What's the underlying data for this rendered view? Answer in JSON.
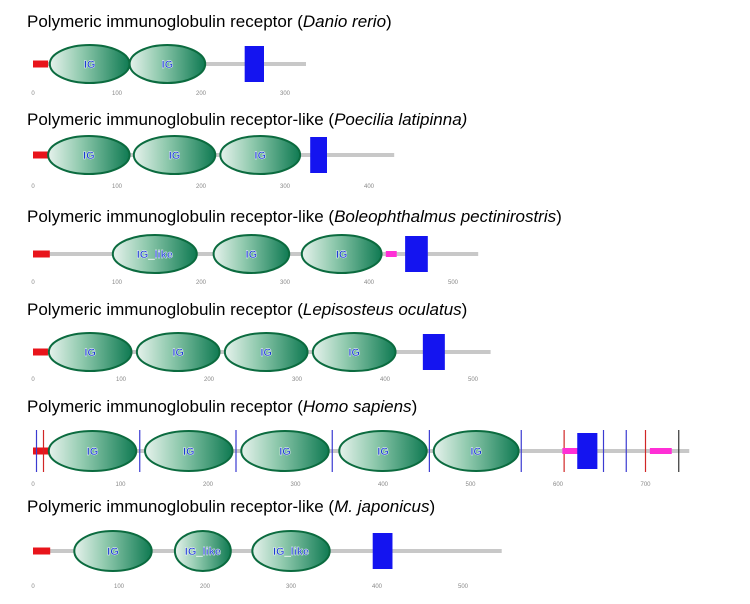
{
  "colors": {
    "backbone": "#c8c8c8",
    "signal_peptide": "#e8141b",
    "domain_fill_dark": "#0f7a52",
    "domain_fill_light": "#e6f2ec",
    "domain_stroke": "#0b6b3f",
    "domain_label": "#1b3ad6",
    "transmembrane": "#1414f0",
    "low_complexity": "#ff2fd6",
    "exon_boundary_blue": "#3b3bd1",
    "exon_boundary_red": "#d12626",
    "exon_boundary_black": "#333333",
    "axis_tick": "#888888"
  },
  "proteins": [
    {
      "id": "danio",
      "title_prefix": "Polymeric immunoglobulin receptor (",
      "species": "Danio rerio",
      "title_suffix": ")",
      "length": 325,
      "ticks": [
        "0",
        "100",
        "200",
        "300"
      ],
      "tick_values": [
        0,
        100,
        200,
        300
      ],
      "signal": [
        0,
        18
      ],
      "domains": [
        {
          "label": "IG",
          "start": 20,
          "end": 115
        },
        {
          "label": "IG",
          "start": 115,
          "end": 205
        }
      ],
      "lowc": [],
      "tm": [
        252,
        275
      ],
      "lines": []
    },
    {
      "id": "poecilia",
      "title_prefix": "Polymeric immunoglobulin receptor-like (",
      "species": "Poecilia latipinna)",
      "title_suffix": "",
      "length": 430,
      "ticks": [
        "0",
        "100",
        "200",
        "300",
        "400"
      ],
      "tick_values": [
        0,
        100,
        200,
        300,
        400
      ],
      "signal": [
        0,
        18
      ],
      "domains": [
        {
          "label": "IG",
          "start": 18,
          "end": 115
        },
        {
          "label": "IG",
          "start": 120,
          "end": 217
        },
        {
          "label": "IG",
          "start": 223,
          "end": 318
        }
      ],
      "lowc": [],
      "tm": [
        330,
        350
      ],
      "lines": []
    },
    {
      "id": "boleophthalmus",
      "title_prefix": "Polymeric immunoglobulin receptor-like (",
      "species": "Boleophthalmus pectinirostris",
      "title_suffix": ")",
      "length": 530,
      "ticks": [
        "0",
        "100",
        "200",
        "300",
        "400",
        "500"
      ],
      "tick_values": [
        0,
        100,
        200,
        300,
        400,
        500
      ],
      "signal": [
        0,
        20
      ],
      "domains": [
        {
          "label": "IG_like",
          "start": 95,
          "end": 195
        },
        {
          "label": "IG",
          "start": 215,
          "end": 305
        },
        {
          "label": "IG",
          "start": 320,
          "end": 415
        }
      ],
      "lowc": [
        [
          420,
          433
        ]
      ],
      "tm": [
        443,
        470
      ],
      "lines": []
    },
    {
      "id": "lepisosteus",
      "title_prefix": "Polymeric immunoglobulin receptor (",
      "species": "Lepisosteus oculatus",
      "title_suffix": ")",
      "length": 520,
      "ticks": [
        "0",
        "100",
        "200",
        "300",
        "400",
        "500"
      ],
      "tick_values": [
        0,
        100,
        200,
        300,
        400,
        500
      ],
      "signal": [
        0,
        17
      ],
      "domains": [
        {
          "label": "IG",
          "start": 18,
          "end": 112
        },
        {
          "label": "IG",
          "start": 118,
          "end": 212
        },
        {
          "label": "IG",
          "start": 218,
          "end": 312
        },
        {
          "label": "IG",
          "start": 318,
          "end": 412
        }
      ],
      "lowc": [],
      "tm": [
        443,
        468
      ],
      "lines": []
    },
    {
      "id": "homo",
      "title_prefix": "Polymeric immunoglobulin receptor (",
      "species": "Homo sapiens",
      "title_suffix": ")",
      "length": 750,
      "ticks": [
        "0",
        "100",
        "200",
        "300",
        "400",
        "500",
        "600",
        "700"
      ],
      "tick_values": [
        0,
        100,
        200,
        300,
        400,
        500,
        600,
        700
      ],
      "signal": [
        0,
        18
      ],
      "domains": [
        {
          "label": "IG",
          "start": 18,
          "end": 118
        },
        {
          "label": "IG",
          "start": 128,
          "end": 228
        },
        {
          "label": "IG",
          "start": 238,
          "end": 338
        },
        {
          "label": "IG",
          "start": 350,
          "end": 450
        },
        {
          "label": "IG",
          "start": 458,
          "end": 555
        }
      ],
      "lowc": [
        [
          605,
          625
        ],
        [
          705,
          730
        ]
      ],
      "tm": [
        622,
        645
      ],
      "lines": [
        {
          "pos": 4,
          "kind": "blue"
        },
        {
          "pos": 12,
          "kind": "red"
        },
        {
          "pos": 122,
          "kind": "blue"
        },
        {
          "pos": 232,
          "kind": "blue"
        },
        {
          "pos": 342,
          "kind": "blue"
        },
        {
          "pos": 453,
          "kind": "blue"
        },
        {
          "pos": 558,
          "kind": "blue"
        },
        {
          "pos": 607,
          "kind": "red"
        },
        {
          "pos": 652,
          "kind": "blue"
        },
        {
          "pos": 678,
          "kind": "blue"
        },
        {
          "pos": 700,
          "kind": "red"
        },
        {
          "pos": 738,
          "kind": "black"
        }
      ]
    },
    {
      "id": "japonicus",
      "title_prefix": "Polymeric immunoglobulin receptor-like (",
      "species": "M. japonicus",
      "title_suffix": ")",
      "length": 545,
      "ticks": [
        "0",
        "100",
        "200",
        "300",
        "400",
        "500"
      ],
      "tick_values": [
        0,
        100,
        200,
        300,
        400,
        500
      ],
      "signal": [
        0,
        20
      ],
      "domains": [
        {
          "label": "IG",
          "start": 48,
          "end": 138
        },
        {
          "label": "IG_like",
          "start": 165,
          "end": 230
        },
        {
          "label": "IG_like",
          "start": 255,
          "end": 345
        }
      ],
      "lowc": [],
      "tm": [
        395,
        418
      ],
      "lines": []
    }
  ]
}
